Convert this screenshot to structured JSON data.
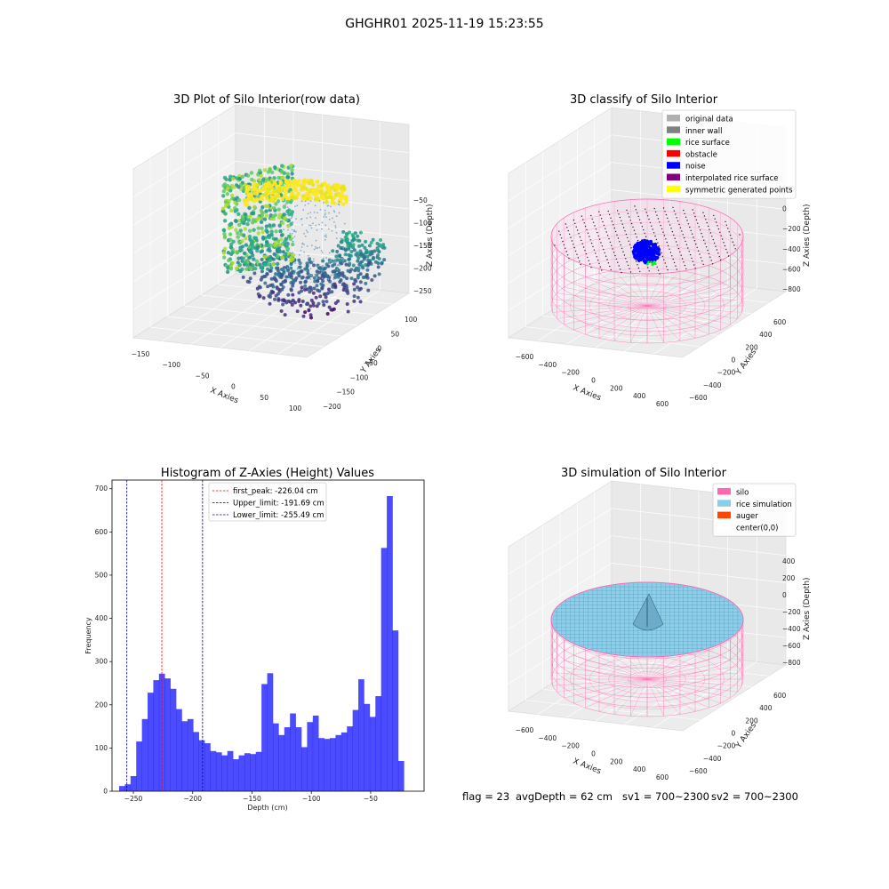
{
  "figure": {
    "suptitle": "GHGHR01 2025-11-19 15:23:55",
    "status": {
      "flag": "flag = 23",
      "avg_depth": "avgDepth = 62 cm",
      "sv1": "sv1 = 700~2300",
      "sv2": "sv2 = 700~2300"
    }
  },
  "colors": {
    "hist_bar": "#0000ff",
    "first_peak": "#ff0000",
    "limits": "#00008b",
    "silo": "#ff69b4",
    "rice_sim": "#87ceeb",
    "auger": "#ff4500",
    "noise": "#0000ff"
  },
  "chart_data": [
    {
      "type": "scatter",
      "title": "3D Plot of Silo Interior(row data)",
      "xlabel": "X Axies",
      "ylabel": "Y Axies",
      "zlabel": "Z Axies (Depth)",
      "x_ticks": [
        "−150",
        "−100",
        "−50",
        "0",
        "50",
        "100"
      ],
      "y_ticks": [
        "−200",
        "−150",
        "−100",
        "−50",
        "0",
        "50",
        "100"
      ],
      "z_ticks": [
        "−50",
        "−100",
        "−150",
        "−200",
        "−250"
      ],
      "colormap": "viridis"
    },
    {
      "type": "scatter",
      "title": "3D classify of Silo Interior",
      "xlabel": "X Axies",
      "ylabel": "Y Axies",
      "zlabel": "Z Axies (Depth)",
      "x_ticks": [
        "−600",
        "−400",
        "−200",
        "0",
        "200",
        "400",
        "600"
      ],
      "y_ticks": [
        "−600",
        "−400",
        "−200",
        "0",
        "200",
        "400",
        "600"
      ],
      "z_ticks": [
        "200",
        "0",
        "−200",
        "−400",
        "−600",
        "−800"
      ],
      "legend": [
        {
          "label": "original data",
          "color": "#b0b0b0"
        },
        {
          "label": "inner wall",
          "color": "#808080"
        },
        {
          "label": "rice surface",
          "color": "#00ff00"
        },
        {
          "label": "obstacle",
          "color": "#ff0000"
        },
        {
          "label": "noise",
          "color": "#0000ff"
        },
        {
          "label": "interpolated rice surface",
          "color": "#800080"
        },
        {
          "label": "symmetric generated points",
          "color": "#ffff00"
        }
      ],
      "legend_position": "top-right"
    },
    {
      "type": "bar",
      "title": "Histogram of Z-Axies (Height) Values",
      "xlabel": "Depth (cm)",
      "ylabel": "Frequency",
      "xlim": [
        -268,
        -5
      ],
      "ylim": [
        0,
        720
      ],
      "x_ticks": [
        -250,
        -200,
        -150,
        -100,
        -50
      ],
      "y_ticks": [
        0,
        100,
        200,
        300,
        400,
        500,
        600,
        700
      ],
      "bin_start": -262,
      "bin_width": 4.8,
      "values": [
        12,
        16,
        35,
        115,
        167,
        228,
        257,
        272,
        261,
        237,
        190,
        162,
        167,
        137,
        118,
        111,
        93,
        90,
        83,
        93,
        74,
        83,
        88,
        86,
        91,
        248,
        273,
        157,
        130,
        148,
        180,
        148,
        102,
        160,
        175,
        123,
        121,
        123,
        130,
        136,
        150,
        188,
        259,
        202,
        172,
        220,
        563,
        683,
        372,
        70
      ],
      "lines": [
        {
          "label": "first_peak: -226.04 cm",
          "x": -226.04,
          "color": "#ff0000"
        },
        {
          "label": "Upper_limit: -191.69 cm",
          "x": -191.69,
          "color": "#00008b"
        },
        {
          "label": "Lower_limit: -255.49 cm",
          "x": -255.49,
          "color": "#00008b"
        }
      ],
      "legend_position": "top-left"
    },
    {
      "type": "scatter",
      "title": "3D simulation of Silo Interior",
      "xlabel": "X Axies",
      "ylabel": "Y Axies",
      "zlabel": "Z Axies (Depth)",
      "x_ticks": [
        "−600",
        "−400",
        "−200",
        "0",
        "200",
        "400",
        "600"
      ],
      "y_ticks": [
        "−600",
        "−400",
        "−200",
        "0",
        "200",
        "400",
        "600"
      ],
      "z_ticks": [
        "400",
        "200",
        "0",
        "−200",
        "−400",
        "−600",
        "−800"
      ],
      "legend": [
        {
          "label": "silo",
          "color": "#ff69b4"
        },
        {
          "label": "rice simulation",
          "color": "#87ceeb"
        },
        {
          "label": "auger",
          "color": "#ff4500"
        },
        {
          "label": "center(0,0)",
          "color": "#ffffff"
        }
      ],
      "legend_position": "top-right"
    }
  ]
}
